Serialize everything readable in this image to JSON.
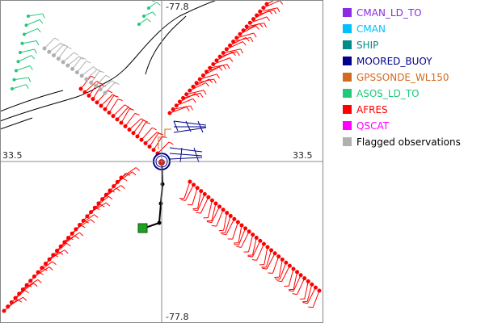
{
  "axes": {
    "top": "-77.8",
    "bottom": "-77.8",
    "left": "33.5",
    "right": "33.5"
  },
  "legend": [
    {
      "label": "CMAN_LD_TO",
      "color": "#8b2be2"
    },
    {
      "label": "CMAN",
      "color": "#00bfff"
    },
    {
      "label": "SHIP",
      "color": "#008b8b"
    },
    {
      "label": "MOORED_BUOY",
      "color": "#00008b"
    },
    {
      "label": "GPSSONDE_WL150",
      "color": "#d2691e"
    },
    {
      "label": "ASOS_LD_TO",
      "color": "#20c87a"
    },
    {
      "label": "AFRES",
      "color": "#ff0000"
    },
    {
      "label": "QSCAT",
      "color": "#ff00ff"
    },
    {
      "label": "Flagged observations",
      "color": "#b0b0b0"
    }
  ]
}
